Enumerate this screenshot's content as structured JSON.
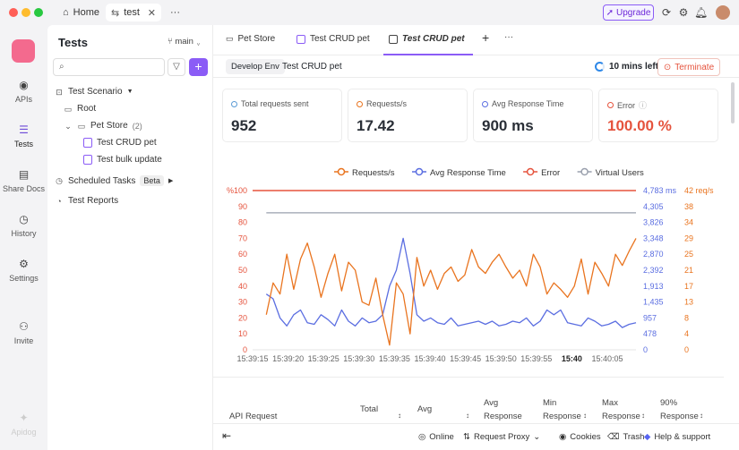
{
  "window": {
    "home_tab": "Home",
    "active_tab": "test",
    "more": "···",
    "upgrade_label": "Upgrade"
  },
  "nav": {
    "items": [
      {
        "label": "APIs",
        "icon": "api-icon"
      },
      {
        "label": "Tests",
        "icon": "tests-icon"
      },
      {
        "label": "Share Docs",
        "icon": "docs-icon"
      },
      {
        "label": "History",
        "icon": "history-icon"
      },
      {
        "label": "Settings",
        "icon": "settings-icon"
      },
      {
        "label": "Invite",
        "icon": "invite-icon"
      }
    ],
    "brand": "Apidog"
  },
  "sidebar": {
    "title": "Tests",
    "branch": "main",
    "search_placeholder": "",
    "tree": {
      "scenario": "Test Scenario",
      "root": "Root",
      "folder": "Pet Store",
      "folder_count": "(2)",
      "item1": "Test CRUD pet",
      "item2": "Test bulk update",
      "scheduled": "Scheduled Tasks",
      "beta": "Beta",
      "reports": "Test Reports"
    }
  },
  "tabs": {
    "t1": "Pet Store",
    "t2": "Test CRUD pet",
    "t3": "Test CRUD pet",
    "add": "+",
    "more": "···"
  },
  "env": {
    "chip": "Develop Env",
    "name": "Test CRUD pet",
    "time_left": "10 mins left",
    "terminate": "Terminate"
  },
  "cards": [
    {
      "label": "Total requests sent",
      "value": "952",
      "color": "#2a2f37"
    },
    {
      "label": "Requests/s",
      "value": "17.42",
      "color": "#2a2f37"
    },
    {
      "label": "Avg Response Time",
      "value": "900 ms",
      "color": "#2a2f37"
    },
    {
      "label": "Error",
      "value": "100.00 %",
      "color": "#e5533d"
    }
  ],
  "chart_data": {
    "type": "line",
    "legend": [
      "Requests/s",
      "Avg Response Time",
      "Error",
      "Virtual Users"
    ],
    "colors": {
      "requests": "#e9741f",
      "response": "#5b6ee1",
      "error": "#e5533d",
      "users": "#9aa0ad"
    },
    "x_ticks": [
      "15:39:15",
      "15:39:20",
      "15:39:25",
      "15:39:30",
      "15:39:35",
      "15:39:40",
      "15:39:45",
      "15:39:50",
      "15:39:55",
      "15:40",
      "15:40:05"
    ],
    "left_axis": {
      "unit": "%",
      "ticks": [
        "100",
        "90",
        "80",
        "70",
        "60",
        "50",
        "40",
        "30",
        "20",
        "10",
        "0"
      ]
    },
    "ms_axis": {
      "ticks": [
        "4,783 ms",
        "4,305",
        "3,826",
        "3,348",
        "2,870",
        "2,392",
        "1,913",
        "1,435",
        "957",
        "478",
        "0"
      ]
    },
    "rps_axis": {
      "ticks": [
        "42 req/s",
        "38",
        "34",
        "29",
        "25",
        "21",
        "17",
        "13",
        "8",
        "4",
        "0"
      ]
    },
    "x_start_s": 0,
    "x_end_s": 56,
    "series": [
      {
        "name": "Requests/s",
        "axis": "left",
        "t": [
          2,
          3,
          4,
          5,
          6,
          7,
          8,
          9,
          10,
          11,
          12,
          13,
          14,
          15,
          16,
          17,
          18,
          19,
          20,
          21,
          22,
          23,
          24,
          25,
          26,
          27,
          28,
          29,
          30,
          31,
          32,
          33,
          34,
          35,
          36,
          37,
          38,
          39,
          40,
          41,
          42,
          43,
          44,
          45,
          46,
          47,
          48,
          49,
          50,
          51,
          52,
          53,
          54,
          55,
          56
        ],
        "v": [
          22,
          42,
          35,
          60,
          38,
          57,
          67,
          52,
          33,
          48,
          60,
          37,
          55,
          50,
          30,
          28,
          45,
          22,
          3,
          42,
          35,
          10,
          58,
          40,
          50,
          38,
          48,
          52,
          43,
          47,
          63,
          52,
          48,
          55,
          60,
          52,
          45,
          50,
          40,
          60,
          52,
          35,
          42,
          38,
          33,
          40,
          57,
          35,
          55,
          48,
          40,
          60,
          53,
          62,
          70
        ]
      },
      {
        "name": "Avg Response Time",
        "axis": "left",
        "t": [
          2,
          3,
          4,
          5,
          6,
          7,
          8,
          9,
          10,
          11,
          12,
          13,
          14,
          15,
          16,
          17,
          18,
          19,
          20,
          21,
          22,
          23,
          24,
          25,
          26,
          27,
          28,
          29,
          30,
          31,
          32,
          33,
          34,
          35,
          36,
          37,
          38,
          39,
          40,
          41,
          42,
          43,
          44,
          45,
          46,
          47,
          48,
          49,
          50,
          51,
          52,
          53,
          54,
          55,
          56
        ],
        "v": [
          35,
          32,
          20,
          15,
          22,
          25,
          17,
          16,
          22,
          19,
          15,
          25,
          18,
          15,
          20,
          17,
          18,
          22,
          40,
          50,
          70,
          48,
          22,
          18,
          20,
          17,
          16,
          20,
          15,
          16,
          17,
          18,
          16,
          18,
          15,
          16,
          18,
          17,
          20,
          15,
          18,
          25,
          22,
          25,
          17,
          16,
          15,
          20,
          18,
          15,
          16,
          18,
          14,
          16,
          17
        ]
      },
      {
        "name": "Error",
        "axis": "left",
        "t": [
          0,
          56
        ],
        "v": [
          100,
          100
        ]
      },
      {
        "name": "Virtual Users",
        "axis": "left",
        "t": [
          2,
          56
        ],
        "v": [
          86,
          86
        ]
      }
    ]
  },
  "table": {
    "c1": "API Request",
    "c2": "Total",
    "c3": "Avg",
    "c4a": "Avg",
    "c4b": "Response",
    "c5a": "Min",
    "c5b": "Response",
    "c6a": "Max",
    "c6b": "Response",
    "c7a": "90%",
    "c7b": "Response"
  },
  "footer": {
    "online": "Online",
    "proxy": "Request Proxy",
    "cookies": "Cookies",
    "trash": "Trash",
    "help": "Help & support"
  }
}
